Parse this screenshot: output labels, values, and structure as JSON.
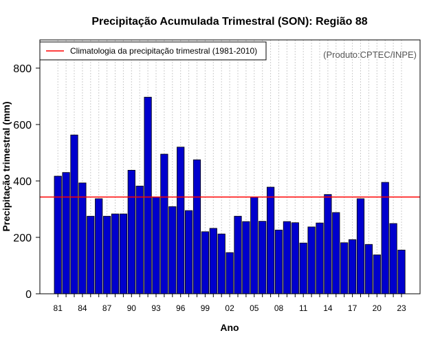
{
  "chart_data": {
    "type": "bar",
    "title": "Precipitação Acumulada Trimestral (SON): Região 88",
    "xlabel": "Ano",
    "ylabel": "Precipitação trimestral (mm)",
    "ylim": [
      0,
      900
    ],
    "yticks": [
      0,
      200,
      400,
      600,
      800
    ],
    "grid": true,
    "legend_position": "top-left",
    "credit": "(Produto:CPTEC/INPE)",
    "categories": [
      "1981",
      "1982",
      "1983",
      "1984",
      "1985",
      "1986",
      "1987",
      "1988",
      "1989",
      "1990",
      "1991",
      "1992",
      "1993",
      "1994",
      "1995",
      "1996",
      "1997",
      "1998",
      "1999",
      "2000",
      "2001",
      "2002",
      "2003",
      "2004",
      "2005",
      "2006",
      "2007",
      "2008",
      "2009",
      "2010",
      "2011",
      "2012",
      "2013",
      "2014",
      "2015",
      "2016",
      "2017",
      "2018",
      "2019",
      "2020",
      "2021",
      "2022",
      "2023"
    ],
    "tick_labels": [
      "81",
      "84",
      "87",
      "90",
      "93",
      "96",
      "99",
      "02",
      "05",
      "08",
      "11",
      "14",
      "17",
      "20",
      "23"
    ],
    "series": [
      {
        "name": "Precipitação trimestral",
        "color": "#0000cd",
        "values": [
          417,
          430,
          563,
          393,
          275,
          337,
          275,
          283,
          283,
          438,
          382,
          697,
          343,
          495,
          309,
          520,
          295,
          475,
          220,
          232,
          212,
          146,
          275,
          256,
          343,
          257,
          378,
          226,
          256,
          252,
          180,
          237,
          251,
          352,
          288,
          181,
          192,
          337,
          175,
          138,
          395,
          249,
          155
        ]
      }
    ],
    "reference_line": {
      "label": "Climatologia da precipitação trimestral (1981-2010)",
      "value": 343,
      "color": "#ff0000"
    }
  }
}
